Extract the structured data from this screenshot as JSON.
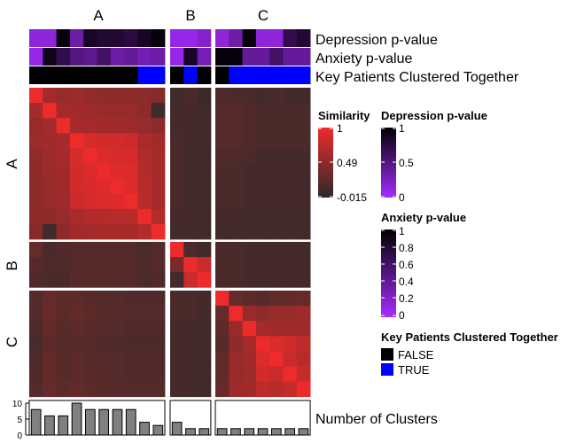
{
  "chart_data": {
    "type": "heatmap",
    "clusters": [
      "A",
      "B",
      "C"
    ],
    "cluster_sizes": [
      10,
      3,
      7
    ],
    "annotation_rows": [
      {
        "name": "Depression p-value",
        "kind": "numeric",
        "values": [
          0.15,
          0.15,
          0.95,
          0.35,
          0.85,
          0.8,
          0.8,
          0.75,
          0.85,
          0.95,
          0.1,
          0.1,
          0.2,
          0.15,
          0.35,
          0.95,
          0.15,
          0.15,
          0.7,
          0.8
        ]
      },
      {
        "name": "Anxiety p-value",
        "kind": "numeric",
        "values": [
          0.1,
          0.9,
          0.7,
          0.5,
          0.45,
          0.6,
          0.35,
          0.4,
          0.3,
          0.35,
          0.1,
          0.85,
          0.3,
          0.95,
          0.95,
          0.4,
          0.4,
          0.6,
          0.4,
          0.4
        ]
      },
      {
        "name": "Key Patients Clustered Together",
        "kind": "logical",
        "values": [
          false,
          false,
          false,
          false,
          false,
          false,
          false,
          false,
          true,
          true,
          false,
          true,
          false,
          false,
          true,
          true,
          true,
          true,
          true,
          true
        ]
      }
    ],
    "similarity_matrix": [
      [
        1.0,
        0.62,
        0.55,
        0.58,
        0.52,
        0.5,
        0.5,
        0.5,
        0.5,
        0.45,
        0.1,
        0.15,
        0.08,
        0.18,
        0.15,
        0.15,
        0.12,
        0.15,
        0.12,
        0.12
      ],
      [
        0.62,
        1.0,
        0.62,
        0.6,
        0.58,
        0.57,
        0.55,
        0.55,
        0.5,
        0.1,
        0.12,
        0.12,
        0.1,
        0.2,
        0.2,
        0.18,
        0.15,
        0.15,
        0.15,
        0.15
      ],
      [
        0.55,
        0.62,
        1.0,
        0.63,
        0.62,
        0.6,
        0.6,
        0.58,
        0.55,
        0.5,
        0.12,
        0.12,
        0.1,
        0.2,
        0.2,
        0.18,
        0.15,
        0.15,
        0.15,
        0.15
      ],
      [
        0.58,
        0.6,
        0.63,
        1.0,
        0.88,
        0.85,
        0.85,
        0.82,
        0.65,
        0.6,
        0.15,
        0.12,
        0.1,
        0.22,
        0.2,
        0.18,
        0.15,
        0.15,
        0.15,
        0.15
      ],
      [
        0.52,
        0.58,
        0.62,
        0.88,
        1.0,
        0.9,
        0.88,
        0.88,
        0.68,
        0.62,
        0.15,
        0.12,
        0.1,
        0.18,
        0.18,
        0.15,
        0.12,
        0.12,
        0.12,
        0.12
      ],
      [
        0.5,
        0.57,
        0.6,
        0.85,
        0.9,
        1.0,
        0.92,
        0.9,
        0.7,
        0.63,
        0.15,
        0.12,
        0.1,
        0.15,
        0.15,
        0.12,
        0.12,
        0.12,
        0.12,
        0.12
      ],
      [
        0.5,
        0.55,
        0.6,
        0.85,
        0.88,
        0.92,
        1.0,
        0.92,
        0.72,
        0.63,
        0.15,
        0.12,
        0.1,
        0.15,
        0.15,
        0.12,
        0.12,
        0.12,
        0.12,
        0.12
      ],
      [
        0.5,
        0.55,
        0.58,
        0.82,
        0.88,
        0.9,
        0.92,
        1.0,
        0.72,
        0.62,
        0.15,
        0.12,
        0.1,
        0.15,
        0.15,
        0.12,
        0.12,
        0.12,
        0.12,
        0.12
      ],
      [
        0.5,
        0.5,
        0.55,
        0.65,
        0.68,
        0.7,
        0.72,
        0.72,
        1.0,
        0.7,
        0.12,
        0.12,
        0.1,
        0.12,
        0.12,
        0.1,
        0.1,
        0.1,
        0.1,
        0.1
      ],
      [
        0.45,
        0.1,
        0.5,
        0.6,
        0.62,
        0.63,
        0.63,
        0.62,
        0.7,
        1.0,
        0.1,
        0.1,
        0.1,
        0.1,
        0.1,
        0.1,
        0.1,
        0.1,
        0.1,
        0.1
      ],
      [
        0.3,
        0.15,
        0.18,
        0.2,
        0.2,
        0.2,
        0.2,
        0.2,
        0.15,
        0.2,
        1.0,
        0.15,
        0.1,
        0.15,
        0.15,
        0.12,
        0.12,
        0.12,
        0.12,
        0.12
      ],
      [
        0.2,
        0.18,
        0.18,
        0.22,
        0.22,
        0.22,
        0.22,
        0.22,
        0.18,
        0.2,
        0.4,
        1.0,
        0.8,
        0.15,
        0.15,
        0.12,
        0.12,
        0.12,
        0.12,
        0.12
      ],
      [
        0.18,
        0.15,
        0.15,
        0.2,
        0.2,
        0.2,
        0.2,
        0.2,
        0.15,
        0.18,
        0.1,
        0.8,
        1.0,
        0.15,
        0.15,
        0.12,
        0.12,
        0.12,
        0.12,
        0.12
      ],
      [
        0.2,
        0.3,
        0.25,
        0.25,
        0.22,
        0.2,
        0.2,
        0.18,
        0.18,
        0.18,
        0.15,
        0.15,
        0.12,
        1.0,
        0.3,
        0.25,
        0.22,
        0.28,
        0.28,
        0.3
      ],
      [
        0.2,
        0.32,
        0.25,
        0.28,
        0.25,
        0.22,
        0.22,
        0.2,
        0.2,
        0.2,
        0.15,
        0.15,
        0.12,
        0.3,
        1.0,
        0.55,
        0.5,
        0.55,
        0.55,
        0.58
      ],
      [
        0.18,
        0.28,
        0.22,
        0.25,
        0.22,
        0.2,
        0.2,
        0.18,
        0.18,
        0.18,
        0.12,
        0.12,
        0.1,
        0.25,
        0.55,
        1.0,
        0.62,
        0.6,
        0.58,
        0.6
      ],
      [
        0.15,
        0.25,
        0.2,
        0.22,
        0.2,
        0.18,
        0.18,
        0.15,
        0.15,
        0.15,
        0.12,
        0.12,
        0.1,
        0.22,
        0.5,
        0.62,
        1.0,
        0.9,
        0.85,
        0.75
      ],
      [
        0.18,
        0.28,
        0.22,
        0.25,
        0.22,
        0.2,
        0.2,
        0.18,
        0.18,
        0.18,
        0.12,
        0.12,
        0.1,
        0.28,
        0.55,
        0.6,
        0.9,
        1.0,
        0.8,
        0.72
      ],
      [
        0.18,
        0.28,
        0.22,
        0.25,
        0.22,
        0.2,
        0.2,
        0.18,
        0.18,
        0.18,
        0.12,
        0.12,
        0.1,
        0.28,
        0.55,
        0.58,
        0.85,
        0.8,
        1.0,
        0.78
      ],
      [
        0.2,
        0.3,
        0.25,
        0.28,
        0.25,
        0.22,
        0.22,
        0.2,
        0.2,
        0.2,
        0.12,
        0.12,
        0.1,
        0.3,
        0.58,
        0.6,
        0.75,
        0.72,
        0.78,
        1.0
      ]
    ],
    "bottom_bar": {
      "name": "Number of Clusters",
      "ylim": [
        0,
        10
      ],
      "ticks": [
        0,
        5,
        10
      ],
      "values": [
        8,
        6,
        6,
        10,
        8,
        8,
        8,
        8,
        4,
        3,
        4,
        2,
        2,
        2,
        2,
        2,
        2,
        2,
        2,
        2
      ]
    },
    "legends": [
      {
        "title": "Similarity",
        "type": "gradient",
        "labels": [
          "1",
          "0.49",
          "-0.015"
        ],
        "colors": [
          "#ee2b2b",
          "#2a2a2a"
        ]
      },
      {
        "title": "Depression p-value",
        "type": "gradient",
        "labels": [
          "1",
          "0.5",
          "0"
        ],
        "colors": [
          "#000000",
          "#a72bff"
        ]
      },
      {
        "title": "Anxiety p-value",
        "type": "gradient",
        "labels": [
          "1",
          "0.8",
          "0.6",
          "0.4",
          "0.2",
          "0"
        ],
        "colors": [
          "#000000",
          "#a72bff"
        ]
      },
      {
        "title": "Key Patients Clustered Together",
        "type": "discrete",
        "labels": [
          "FALSE",
          "TRUE"
        ],
        "colors": [
          "#000000",
          "#0000ff"
        ]
      }
    ]
  }
}
